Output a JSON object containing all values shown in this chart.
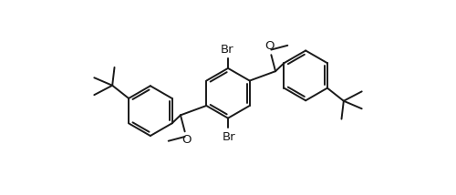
{
  "bg_color": "#ffffff",
  "line_color": "#1a1a1a",
  "line_width": 1.4,
  "font_size": 9.5,
  "figsize": [
    5.0,
    2.14
  ],
  "dpi": 100,
  "xlim": [
    0,
    10
  ],
  "ylim": [
    -0.5,
    4.0
  ]
}
